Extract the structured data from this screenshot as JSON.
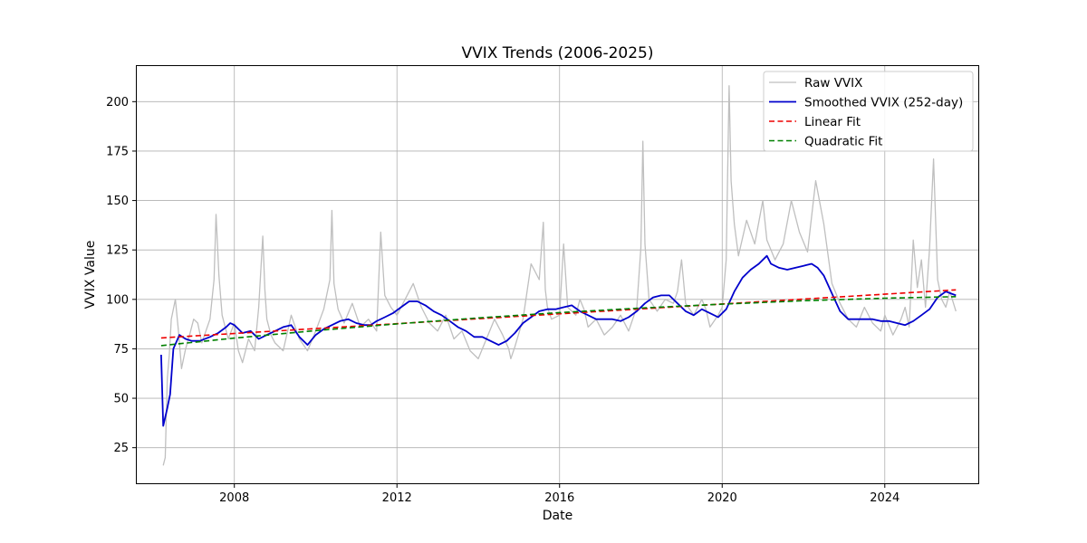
{
  "chart_data": {
    "type": "line",
    "title": "VVIX Trends (2006-2025)",
    "xlabel": "Date",
    "ylabel": "VVIX Value",
    "xlim": [
      2005.6,
      2026.3
    ],
    "ylim": [
      7,
      218
    ],
    "grid": true,
    "legend_position": "top-right",
    "x_ticks": [
      2008,
      2012,
      2016,
      2020,
      2024
    ],
    "x_tick_labels": [
      "2008",
      "2012",
      "2016",
      "2020",
      "2024"
    ],
    "y_ticks": [
      25,
      50,
      75,
      100,
      125,
      150,
      175,
      200
    ],
    "y_tick_labels": [
      "25",
      "50",
      "75",
      "100",
      "125",
      "150",
      "175",
      "200"
    ],
    "series": [
      {
        "name": "Raw VVIX",
        "color": "#bfbfbf",
        "style": "solid",
        "x": [
          2006.25,
          2006.3,
          2006.35,
          2006.4,
          2006.45,
          2006.55,
          2006.62,
          2006.7,
          2006.8,
          2006.9,
          2007.0,
          2007.1,
          2007.2,
          2007.3,
          2007.4,
          2007.5,
          2007.55,
          2007.62,
          2007.7,
          2007.85,
          2008.0,
          2008.1,
          2008.2,
          2008.35,
          2008.5,
          2008.6,
          2008.7,
          2008.75,
          2008.8,
          2008.9,
          2009.0,
          2009.2,
          2009.4,
          2009.6,
          2009.8,
          2010.0,
          2010.2,
          2010.35,
          2010.4,
          2010.45,
          2010.55,
          2010.7,
          2010.9,
          2011.1,
          2011.3,
          2011.5,
          2011.6,
          2011.65,
          2011.7,
          2011.85,
          2012.0,
          2012.2,
          2012.4,
          2012.6,
          2012.8,
          2013.0,
          2013.2,
          2013.4,
          2013.6,
          2013.8,
          2014.0,
          2014.2,
          2014.4,
          2014.6,
          2014.75,
          2014.8,
          2014.9,
          2015.1,
          2015.3,
          2015.5,
          2015.6,
          2015.65,
          2015.7,
          2015.8,
          2016.0,
          2016.1,
          2016.2,
          2016.4,
          2016.5,
          2016.6,
          2016.7,
          2016.9,
          2017.1,
          2017.3,
          2017.5,
          2017.7,
          2017.9,
          2018.0,
          2018.05,
          2018.1,
          2018.2,
          2018.4,
          2018.6,
          2018.8,
          2018.9,
          2019.0,
          2019.1,
          2019.3,
          2019.5,
          2019.6,
          2019.7,
          2019.9,
          2020.0,
          2020.1,
          2020.17,
          2020.22,
          2020.3,
          2020.4,
          2020.6,
          2020.8,
          2021.0,
          2021.1,
          2021.3,
          2021.5,
          2021.7,
          2021.9,
          2022.1,
          2022.3,
          2022.5,
          2022.7,
          2022.9,
          2023.1,
          2023.3,
          2023.5,
          2023.7,
          2023.9,
          2024.0,
          2024.2,
          2024.4,
          2024.5,
          2024.6,
          2024.7,
          2024.8,
          2024.9,
          2025.0,
          2025.1,
          2025.2,
          2025.3,
          2025.4,
          2025.5,
          2025.6,
          2025.75
        ],
        "values": [
          16,
          20,
          60,
          72,
          90,
          100,
          85,
          65,
          75,
          82,
          90,
          88,
          78,
          84,
          90,
          110,
          143,
          112,
          92,
          80,
          88,
          74,
          68,
          80,
          74,
          96,
          132,
          105,
          90,
          82,
          78,
          74,
          92,
          80,
          74,
          84,
          95,
          110,
          145,
          108,
          95,
          88,
          98,
          86,
          90,
          84,
          134,
          118,
          102,
          96,
          92,
          100,
          108,
          96,
          88,
          84,
          92,
          80,
          84,
          74,
          70,
          80,
          90,
          82,
          75,
          70,
          76,
          90,
          118,
          110,
          139,
          105,
          96,
          90,
          92,
          128,
          96,
          92,
          100,
          95,
          86,
          90,
          82,
          86,
          92,
          84,
          96,
          126,
          180,
          128,
          100,
          94,
          100,
          98,
          104,
          120,
          98,
          92,
          100,
          95,
          86,
          92,
          96,
          120,
          208,
          160,
          138,
          122,
          140,
          128,
          150,
          130,
          120,
          128,
          150,
          134,
          124,
          160,
          138,
          108,
          98,
          90,
          86,
          96,
          88,
          84,
          92,
          82,
          90,
          96,
          86,
          130,
          106,
          120,
          96,
          125,
          171,
          110,
          100,
          96,
          104,
          94
        ],
        "data_name": "raw-vvix-line"
      },
      {
        "name": "Smoothed VVIX (252-day)",
        "color": "#0000cc",
        "style": "solid",
        "x": [
          2006.2,
          2006.25,
          2006.35,
          2006.42,
          2006.5,
          2006.65,
          2006.8,
          2006.95,
          2007.15,
          2007.4,
          2007.6,
          2007.8,
          2007.9,
          2008.0,
          2008.2,
          2008.4,
          2008.6,
          2008.8,
          2009.0,
          2009.2,
          2009.4,
          2009.6,
          2009.8,
          2010.0,
          2010.2,
          2010.4,
          2010.6,
          2010.8,
          2011.0,
          2011.2,
          2011.35,
          2011.5,
          2011.7,
          2011.9,
          2012.1,
          2012.3,
          2012.5,
          2012.7,
          2012.9,
          2013.1,
          2013.3,
          2013.5,
          2013.7,
          2013.9,
          2014.1,
          2014.3,
          2014.5,
          2014.7,
          2014.9,
          2015.1,
          2015.3,
          2015.5,
          2015.7,
          2015.9,
          2016.1,
          2016.3,
          2016.5,
          2016.7,
          2016.9,
          2017.1,
          2017.3,
          2017.5,
          2017.7,
          2017.9,
          2018.1,
          2018.3,
          2018.5,
          2018.7,
          2018.9,
          2019.1,
          2019.3,
          2019.5,
          2019.7,
          2019.9,
          2020.1,
          2020.3,
          2020.5,
          2020.7,
          2020.9,
          2021.1,
          2021.2,
          2021.4,
          2021.6,
          2021.8,
          2022.0,
          2022.2,
          2022.35,
          2022.5,
          2022.7,
          2022.9,
          2023.1,
          2023.3,
          2023.5,
          2023.7,
          2023.9,
          2024.1,
          2024.3,
          2024.5,
          2024.7,
          2024.9,
          2025.1,
          2025.3,
          2025.5,
          2025.75
        ],
        "values": [
          72,
          36,
          45,
          52,
          75,
          82,
          80,
          79,
          79,
          81,
          83,
          86,
          88,
          87,
          83,
          84,
          80,
          82,
          84,
          86,
          87,
          81,
          77,
          82,
          85,
          87,
          89,
          90,
          88,
          87,
          87,
          89,
          91,
          93,
          96,
          99,
          99,
          97,
          94,
          92,
          89,
          86,
          84,
          81,
          81,
          79,
          77,
          79,
          83,
          88,
          91,
          94,
          95,
          95,
          96,
          97,
          94,
          92,
          90,
          90,
          90,
          89,
          91,
          94,
          98,
          101,
          102,
          102,
          98,
          94,
          92,
          95,
          93,
          91,
          95,
          104,
          111,
          115,
          118,
          122,
          118,
          116,
          115,
          116,
          117,
          118,
          116,
          112,
          103,
          94,
          90,
          90,
          90,
          90,
          89,
          89,
          88,
          87,
          89,
          92,
          95,
          101,
          104,
          102
        ],
        "data_name": "smoothed-vvix-line"
      },
      {
        "name": "Linear Fit",
        "color": "#ee0000",
        "style": "dashed",
        "x": [
          2006.2,
          2025.75
        ],
        "values": [
          80.5,
          104.8
        ],
        "data_name": "linear-fit-line"
      },
      {
        "name": "Quadratic Fit",
        "color": "#008000",
        "style": "dashed",
        "x": [
          2006.2,
          2008,
          2010,
          2012,
          2014,
          2016,
          2018,
          2020,
          2022,
          2024,
          2025.75
        ],
        "values": [
          76.6,
          80.4,
          84.2,
          87.6,
          90.6,
          93.3,
          95.6,
          97.6,
          99.3,
          100.6,
          101.4
        ],
        "data_name": "quadratic-fit-line"
      }
    ]
  }
}
